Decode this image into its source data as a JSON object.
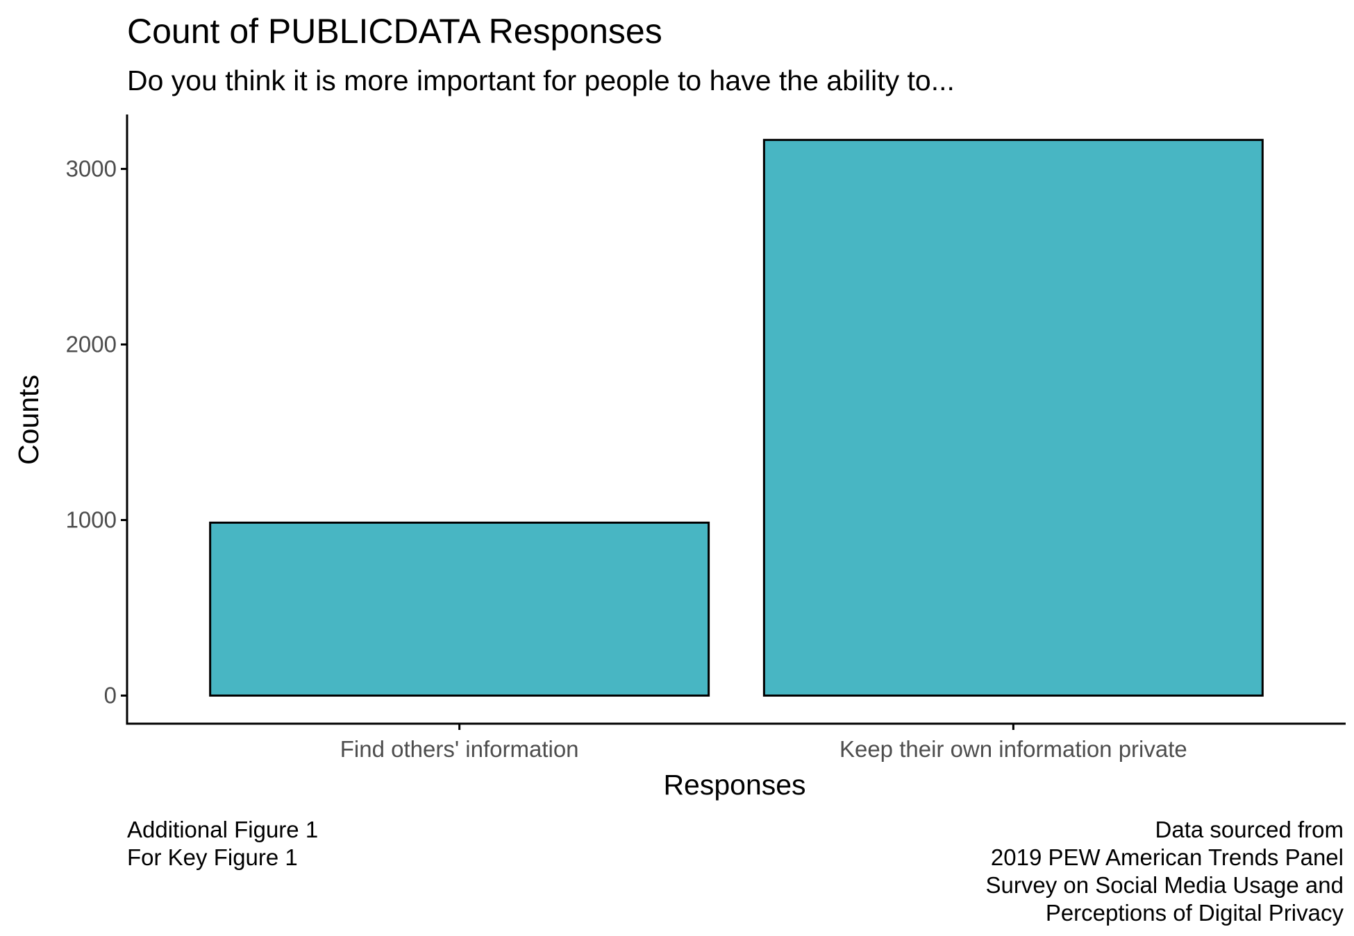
{
  "chart_data": {
    "type": "bar",
    "title": "Count of PUBLICDATA Responses",
    "subtitle": "Do you think it is more important for people to have the ability to...",
    "xlabel": "Responses",
    "ylabel": "Counts",
    "categories": [
      "Find others' information",
      "Keep their own information private"
    ],
    "values": [
      985,
      3165
    ],
    "yticks": [
      0,
      1000,
      2000,
      3000
    ],
    "ylim": [
      -160,
      3310
    ],
    "bar_fill": "#48b6c3",
    "bar_stroke": "#000000",
    "grid": false,
    "legend": "none",
    "caption_left": [
      "Additional Figure 1",
      "For Key Figure 1"
    ],
    "caption_right": [
      "Data sourced from",
      "2019 PEW American Trends Panel",
      "Survey on Social Media Usage and",
      "Perceptions of Digital Privacy"
    ]
  }
}
